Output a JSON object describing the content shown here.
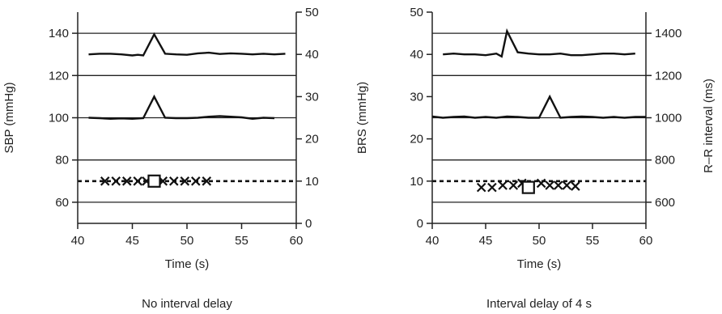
{
  "chart_data": [
    {
      "type": "line",
      "caption": "No interval delay",
      "xlabel": "Time (s)",
      "left_ylabel": "SBP (mmHg)",
      "right_ylabel": "",
      "xlim": [
        40,
        60
      ],
      "xticks": [
        40,
        45,
        50,
        55,
        60
      ],
      "left_ylim": [
        50,
        150
      ],
      "left_yticks": [
        60,
        80,
        100,
        120,
        140
      ],
      "right_ylim": [
        0,
        50
      ],
      "right_yticks": [
        0,
        10,
        20,
        30,
        40,
        50
      ],
      "gridlines_left": [
        60,
        80,
        100,
        120,
        140
      ],
      "dashed_line": {
        "axis": "left",
        "y": 70
      },
      "series": [
        {
          "axis": "left",
          "x": [
            41,
            42,
            43,
            44,
            45,
            45.5,
            46,
            47,
            48,
            49,
            50,
            51,
            52,
            53,
            54,
            55,
            56,
            57,
            58,
            59
          ],
          "y": [
            130,
            130.3,
            130.3,
            130,
            129.5,
            129.8,
            129.5,
            139.5,
            130.3,
            130,
            129.8,
            130.5,
            130.8,
            130.2,
            130.5,
            130.3,
            130,
            130.3,
            130,
            130.3
          ]
        },
        {
          "axis": "left",
          "x": [
            41,
            42,
            43,
            44,
            45,
            46,
            47,
            48,
            49,
            50,
            51,
            52,
            53,
            54,
            55,
            56,
            57,
            58
          ],
          "y": [
            100,
            99.8,
            99.5,
            99.7,
            99.5,
            99.8,
            110,
            100,
            99.8,
            99.8,
            100,
            100.5,
            100.8,
            100.5,
            100.2,
            99.5,
            100,
            99.8
          ]
        }
      ],
      "markers_x": {
        "axis": "left",
        "x": [
          42.5,
          43.5,
          44.5,
          45.5,
          46.3,
          47.8,
          48.8,
          49.8,
          50.8,
          51.8
        ],
        "y": [
          70,
          70,
          70,
          70,
          70,
          70,
          70,
          70,
          70,
          70
        ]
      },
      "marker_square": {
        "axis": "left",
        "x": 47,
        "y": 70
      }
    },
    {
      "type": "line",
      "caption": "Interval delay of 4 s",
      "xlabel": "Time (s)",
      "left_ylabel": "BRS (mmHg)",
      "right_ylabel": "R–R interval (ms)",
      "xlim": [
        40,
        60
      ],
      "xticks": [
        40,
        45,
        50,
        55,
        60
      ],
      "left_ylim": [
        0,
        50
      ],
      "left_yticks": [
        0,
        10,
        20,
        30,
        40,
        50
      ],
      "right_ylim": [
        500,
        1500
      ],
      "right_yticks": [
        600,
        800,
        1000,
        1200,
        1400
      ],
      "gridlines_left": [
        5,
        15,
        25,
        35,
        45
      ],
      "dashed_line": {
        "axis": "left",
        "y": 10
      },
      "series": [
        {
          "axis": "left",
          "x": [
            41,
            42,
            43,
            44,
            45,
            46,
            46.5,
            47,
            48,
            49,
            50,
            51,
            52,
            53,
            54,
            55,
            56,
            57,
            58,
            59
          ],
          "y": [
            40,
            40.2,
            40,
            40,
            39.8,
            40.2,
            39.5,
            45.5,
            40.5,
            40.2,
            40,
            40,
            40.2,
            39.8,
            39.8,
            40,
            40.2,
            40.2,
            40,
            40.2
          ]
        },
        {
          "axis": "left",
          "x": [
            40,
            41,
            42,
            43,
            44,
            45,
            46,
            47,
            48,
            49,
            50,
            51,
            52,
            53,
            54,
            55,
            56,
            57,
            58,
            59,
            60
          ],
          "y": [
            25.3,
            25,
            25.2,
            25.3,
            25,
            25.2,
            25,
            25.3,
            25.2,
            25,
            25,
            30,
            25,
            25.2,
            25.3,
            25.2,
            25,
            25.2,
            25,
            25.2,
            25.2
          ]
        }
      ],
      "markers_x": {
        "axis": "left",
        "x": [
          44.6,
          45.6,
          46.6,
          47.6,
          48.4,
          50.2,
          51.0,
          51.8,
          52.6,
          53.4
        ],
        "y": [
          8.5,
          8.5,
          9,
          9,
          9.5,
          9.5,
          9,
          9,
          9,
          8.8
        ]
      },
      "marker_square": {
        "axis": "left",
        "x": 49,
        "y": 8.5
      }
    }
  ]
}
